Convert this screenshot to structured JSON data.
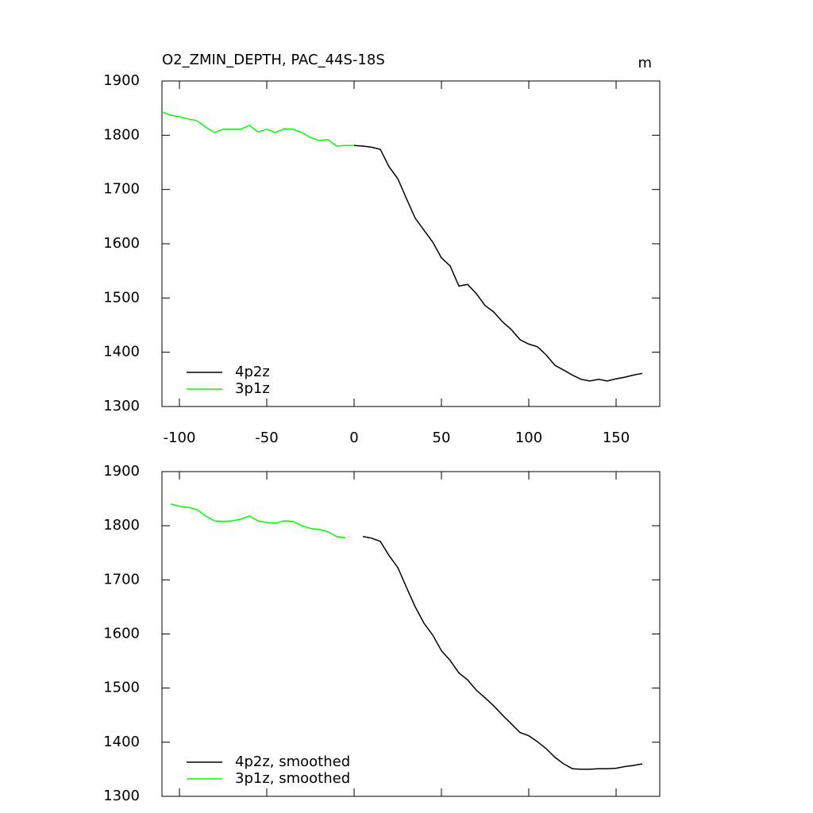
{
  "chart_data": [
    {
      "type": "line",
      "title": "O2_ZMIN_DEPTH, PAC_44S-18S",
      "units": "m",
      "x": [
        -110,
        -105,
        -100,
        -95,
        -90,
        -85,
        -80,
        -75,
        -70,
        -65,
        -60,
        -55,
        -50,
        -45,
        -40,
        -35,
        -30,
        -25,
        -20,
        -15,
        -10,
        -5,
        0,
        5,
        10,
        15,
        20,
        25,
        30,
        35,
        40,
        45,
        50,
        55,
        60,
        65,
        70,
        75,
        80,
        85,
        90,
        95,
        100,
        105,
        110,
        115,
        120,
        125,
        130,
        135,
        140,
        145,
        150,
        155,
        160,
        165
      ],
      "series": [
        {
          "name": "4p2z",
          "color": "#000000",
          "values": [
            null,
            null,
            null,
            null,
            null,
            null,
            null,
            null,
            null,
            null,
            null,
            null,
            null,
            null,
            null,
            null,
            null,
            null,
            null,
            null,
            null,
            null,
            1781,
            1780,
            1778,
            1774,
            1742,
            1720,
            1683,
            1647,
            1625,
            1603,
            1574,
            1559,
            1522,
            1525,
            1508,
            1486,
            1474,
            1456,
            1442,
            1423,
            1415,
            1410,
            1395,
            1376,
            1367,
            1358,
            1350,
            1347,
            1350,
            1347,
            1351,
            1354,
            1358,
            1361
          ]
        },
        {
          "name": "3p1z",
          "color": "#00ff00",
          "values": [
            1843,
            1837,
            1834,
            1830,
            1827,
            1815,
            1805,
            1811,
            1811,
            1811,
            1818,
            1806,
            1811,
            1805,
            1812,
            1811,
            1805,
            1796,
            1790,
            1792,
            1780,
            1781,
            1781,
            null,
            null,
            null,
            null,
            null,
            null,
            null,
            null,
            null,
            null,
            null,
            null,
            null,
            null,
            null,
            null,
            null,
            null,
            null,
            null,
            null,
            null,
            null,
            null,
            null,
            null,
            null,
            null,
            null,
            null,
            null,
            null,
            null
          ]
        }
      ],
      "xlim": [
        -110,
        175
      ],
      "xticks": [
        -100,
        -50,
        0,
        50,
        100,
        150
      ],
      "ylim": [
        1300,
        1900
      ],
      "yticks": [
        1300,
        1400,
        1500,
        1600,
        1700,
        1800,
        1900
      ],
      "legend": "lower left"
    },
    {
      "type": "line",
      "x": [
        -110,
        -105,
        -100,
        -95,
        -90,
        -85,
        -80,
        -75,
        -70,
        -65,
        -60,
        -55,
        -50,
        -45,
        -40,
        -35,
        -30,
        -25,
        -20,
        -15,
        -10,
        -5,
        0,
        5,
        10,
        15,
        20,
        25,
        30,
        35,
        40,
        45,
        50,
        55,
        60,
        65,
        70,
        75,
        80,
        85,
        90,
        95,
        100,
        105,
        110,
        115,
        120,
        125,
        130,
        135,
        140,
        145,
        150,
        155,
        160,
        165
      ],
      "series": [
        {
          "name": "4p2z, smoothed",
          "color": "#000000",
          "values": [
            null,
            null,
            null,
            null,
            null,
            null,
            null,
            null,
            null,
            null,
            null,
            null,
            null,
            null,
            null,
            null,
            null,
            null,
            null,
            null,
            null,
            null,
            null,
            1780,
            1777,
            1771,
            1745,
            1723,
            1686,
            1650,
            1620,
            1598,
            1569,
            1551,
            1528,
            1515,
            1496,
            1482,
            1467,
            1450,
            1434,
            1418,
            1412,
            1401,
            1388,
            1372,
            1360,
            1351,
            1350,
            1350,
            1351,
            1351,
            1352,
            1355,
            1357,
            1360
          ]
        },
        {
          "name": "3p1z, smoothed",
          "color": "#00ff00",
          "values": [
            null,
            1840,
            1836,
            1834,
            1830,
            1818,
            1809,
            1808,
            1809,
            1812,
            1818,
            1809,
            1806,
            1805,
            1809,
            1808,
            1800,
            1795,
            1793,
            1789,
            1780,
            1778,
            null,
            null,
            null,
            null,
            null,
            null,
            null,
            null,
            null,
            null,
            null,
            null,
            null,
            null,
            null,
            null,
            null,
            null,
            null,
            null,
            null,
            null,
            null,
            null,
            null,
            null,
            null,
            null,
            null,
            null,
            null,
            null,
            null,
            null
          ]
        }
      ],
      "xlim": [
        -110,
        175
      ],
      "xticks": [
        -100,
        -50,
        0,
        50,
        100,
        150
      ],
      "ylim": [
        1300,
        1900
      ],
      "yticks": [
        1300,
        1400,
        1500,
        1600,
        1700,
        1800,
        1900
      ],
      "legend": "lower left"
    }
  ]
}
